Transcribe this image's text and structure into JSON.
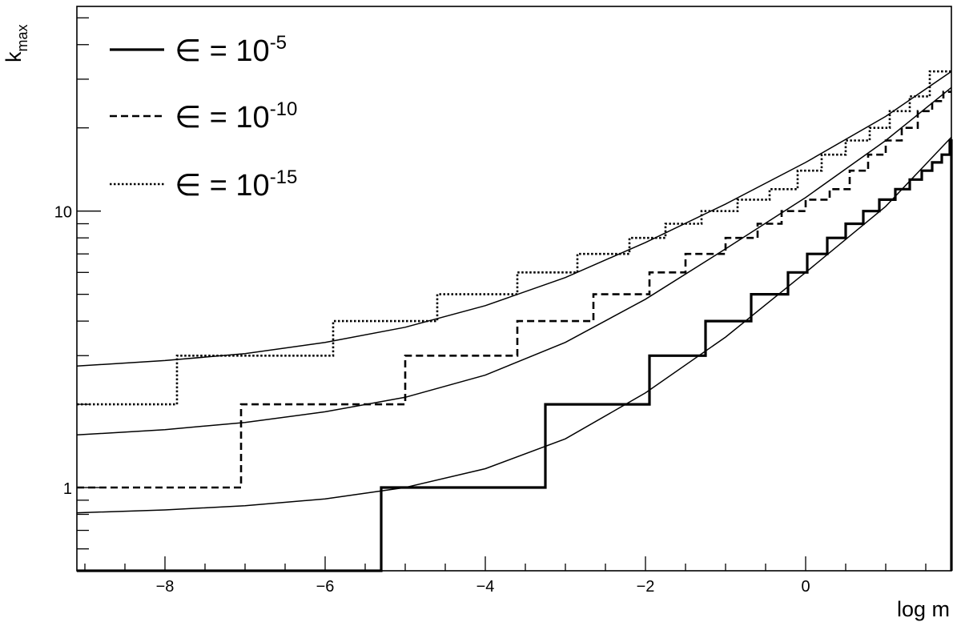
{
  "chart_data": {
    "type": "line",
    "title": "",
    "xlabel": "log m",
    "ylabel_main": "k",
    "ylabel_sub": "max",
    "xlim": [
      -9.1,
      1.82
    ],
    "ylim": [
      0.5,
      55
    ],
    "yscale": "log",
    "grid": false,
    "legend_position": "top-left",
    "x_ticks": [
      -8,
      -6,
      -4,
      -2,
      0
    ],
    "x_tick_labels": [
      "−8",
      "−6",
      "−4",
      "−2",
      "0"
    ],
    "y_ticks_major": [
      1,
      10
    ],
    "y_tick_labels": [
      "1",
      "10"
    ],
    "series": [
      {
        "name_prefix": "∈ = 10",
        "name_exp": "-5",
        "style": "solid",
        "steps": [
          {
            "x_end": -5.3,
            "k": 0.5
          },
          {
            "x_end": -3.25,
            "k": 1
          },
          {
            "x_end": -1.95,
            "k": 2
          },
          {
            "x_end": -1.25,
            "k": 3
          },
          {
            "x_end": -0.68,
            "k": 4
          },
          {
            "x_end": -0.22,
            "k": 5
          },
          {
            "x_end": 0.02,
            "k": 6
          },
          {
            "x_end": 0.27,
            "k": 7
          },
          {
            "x_end": 0.5,
            "k": 8
          },
          {
            "x_end": 0.72,
            "k": 9
          },
          {
            "x_end": 0.92,
            "k": 10
          },
          {
            "x_end": 1.12,
            "k": 11
          },
          {
            "x_end": 1.3,
            "k": 12
          },
          {
            "x_end": 1.45,
            "k": 13
          },
          {
            "x_end": 1.58,
            "k": 14
          },
          {
            "x_end": 1.7,
            "k": 15
          },
          {
            "x_end": 1.8,
            "k": 16
          },
          {
            "x_end": 1.82,
            "k": 18
          }
        ],
        "fit_curve": {
          "x": [
            -9.1,
            -8,
            -7,
            -6,
            -5,
            -4,
            -3,
            -2,
            -1,
            0,
            1,
            1.82
          ],
          "k": [
            0.81,
            0.83,
            0.86,
            0.91,
            1.0,
            1.17,
            1.5,
            2.2,
            3.5,
            6.0,
            10.4,
            18.5
          ]
        }
      },
      {
        "name_prefix": "∈ = 10",
        "name_exp": "-10",
        "style": "dashed",
        "steps": [
          {
            "x_end": -7.05,
            "k": 1
          },
          {
            "x_end": -5.0,
            "k": 2
          },
          {
            "x_end": -3.6,
            "k": 3
          },
          {
            "x_end": -2.65,
            "k": 4
          },
          {
            "x_end": -1.95,
            "k": 5
          },
          {
            "x_end": -1.5,
            "k": 6
          },
          {
            "x_end": -1.0,
            "k": 7
          },
          {
            "x_end": -0.6,
            "k": 8
          },
          {
            "x_end": -0.3,
            "k": 9
          },
          {
            "x_end": 0.0,
            "k": 10
          },
          {
            "x_end": 0.3,
            "k": 11
          },
          {
            "x_end": 0.55,
            "k": 12
          },
          {
            "x_end": 0.78,
            "k": 14
          },
          {
            "x_end": 1.0,
            "k": 16
          },
          {
            "x_end": 1.2,
            "k": 18
          },
          {
            "x_end": 1.4,
            "k": 20
          },
          {
            "x_end": 1.58,
            "k": 23
          },
          {
            "x_end": 1.72,
            "k": 25
          },
          {
            "x_end": 1.82,
            "k": 27
          }
        ],
        "fit_curve": {
          "x": [
            -9.1,
            -8,
            -7,
            -6,
            -5,
            -4,
            -3,
            -2,
            -1,
            0,
            1,
            1.82
          ],
          "k": [
            1.55,
            1.62,
            1.72,
            1.88,
            2.12,
            2.55,
            3.35,
            4.8,
            7.3,
            11.2,
            18.0,
            28.0
          ]
        }
      },
      {
        "name_prefix": "∈ = 10",
        "name_exp": "-15",
        "style": "dotted",
        "steps": [
          {
            "x_end": -7.85,
            "k": 2
          },
          {
            "x_end": -5.9,
            "k": 3
          },
          {
            "x_end": -4.6,
            "k": 4
          },
          {
            "x_end": -3.6,
            "k": 5
          },
          {
            "x_end": -2.85,
            "k": 6
          },
          {
            "x_end": -2.2,
            "k": 7
          },
          {
            "x_end": -1.75,
            "k": 8
          },
          {
            "x_end": -1.3,
            "k": 9
          },
          {
            "x_end": -0.85,
            "k": 10
          },
          {
            "x_end": -0.45,
            "k": 11
          },
          {
            "x_end": -0.1,
            "k": 12
          },
          {
            "x_end": 0.2,
            "k": 14
          },
          {
            "x_end": 0.5,
            "k": 16
          },
          {
            "x_end": 0.8,
            "k": 18
          },
          {
            "x_end": 1.05,
            "k": 20
          },
          {
            "x_end": 1.3,
            "k": 23
          },
          {
            "x_end": 1.55,
            "k": 26
          },
          {
            "x_end": 1.82,
            "k": 32
          }
        ],
        "fit_curve": {
          "x": [
            -9.1,
            -8,
            -7,
            -6,
            -5,
            -4,
            -3,
            -2,
            -1,
            0,
            1,
            1.82
          ],
          "k": [
            2.75,
            2.88,
            3.05,
            3.35,
            3.8,
            4.55,
            5.75,
            7.7,
            10.6,
            15.0,
            22.0,
            32.0
          ]
        }
      }
    ]
  }
}
